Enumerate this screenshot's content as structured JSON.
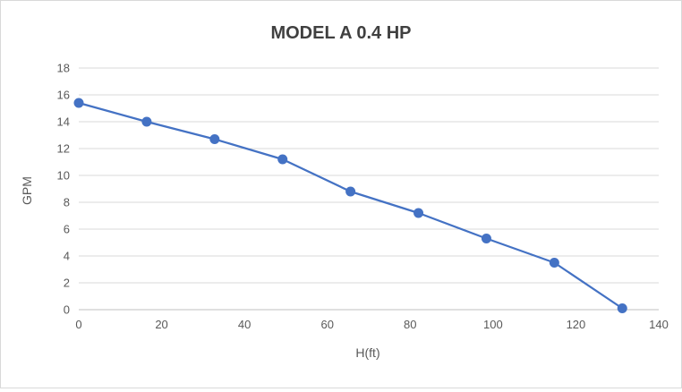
{
  "chart": {
    "title": "MODEL A 0.4 HP",
    "x_axis_title": "H(ft)",
    "y_axis_title": "GPM"
  },
  "chart_data": {
    "type": "line",
    "title": "MODEL A 0.4 HP",
    "xlabel": "H(ft)",
    "ylabel": "GPM",
    "x": [
      0,
      16.4,
      32.8,
      49.2,
      65.6,
      82,
      98.4,
      114.8,
      131.2
    ],
    "y": [
      15.4,
      14.0,
      12.7,
      11.2,
      8.8,
      7.2,
      5.3,
      3.5,
      0.1
    ],
    "xlim": [
      0,
      140
    ],
    "ylim": [
      0,
      18
    ],
    "x_ticks": [
      0,
      20,
      40,
      60,
      80,
      100,
      120,
      140
    ],
    "y_ticks": [
      0,
      2,
      4,
      6,
      8,
      10,
      12,
      14,
      16,
      18
    ],
    "grid": "horizontal",
    "legend": "none",
    "line_color": "#4472C4",
    "marker": "circle",
    "marker_color": "#4472C4",
    "gridline_color": "#d9d9d9",
    "axis_line_color": "#bfbfbf"
  }
}
